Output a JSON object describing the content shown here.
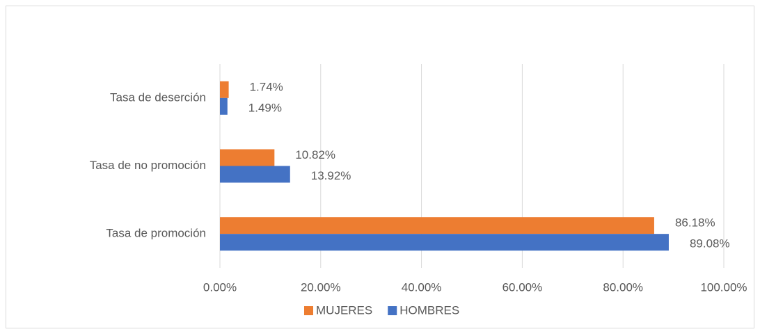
{
  "chart_data": {
    "type": "barh",
    "categories": [
      "Tasa de deserción",
      "Tasa de no promoción",
      "Tasa de promoción"
    ],
    "series": [
      {
        "name": "MUJERES",
        "color": "#ED7D31",
        "values": [
          1.74,
          10.82,
          86.18
        ],
        "value_labels": [
          "1.74%",
          "10.82%",
          "86.18%"
        ]
      },
      {
        "name": "HOMBRES",
        "color": "#4472C4",
        "values": [
          1.49,
          13.92,
          89.08
        ],
        "value_labels": [
          "1.49%",
          "13.92%",
          "89.08%"
        ]
      }
    ],
    "xlim": [
      0,
      100
    ],
    "xticks": [
      {
        "value": 0,
        "label": "0.00%"
      },
      {
        "value": 20,
        "label": "20.00%"
      },
      {
        "value": 40,
        "label": "40.00%"
      },
      {
        "value": 60,
        "label": "60.00%"
      },
      {
        "value": 80,
        "label": "80.00%"
      },
      {
        "value": 100,
        "label": "100.00%"
      }
    ],
    "grid": true,
    "legend": "bottom"
  }
}
